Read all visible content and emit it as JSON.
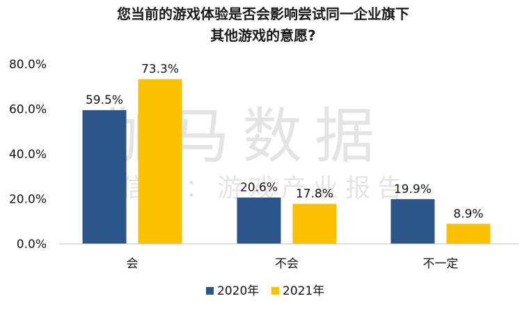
{
  "chart_data": {
    "type": "bar",
    "title_lines": [
      "您当前的游戏体验是否会影响尝试同一企业旗下",
      "其他游戏的意愿?"
    ],
    "categories": [
      "会",
      "不会",
      "不一定"
    ],
    "series": [
      {
        "name": "2020年",
        "values": [
          59.5,
          20.6,
          19.9
        ],
        "color": "#2b5589"
      },
      {
        "name": "2021年",
        "values": [
          73.3,
          17.8,
          8.9
        ],
        "color": "#fbc100"
      }
    ],
    "ylim": [
      0,
      80
    ],
    "yticks": [
      "0.0%",
      "20.0%",
      "40.0%",
      "60.0%",
      "80.0%"
    ],
    "data_labels": [
      [
        "59.5%",
        "20.6%",
        "19.9%"
      ],
      [
        "73.3%",
        "17.8%",
        "8.9%"
      ]
    ],
    "grid": false,
    "legend_position": "bottom"
  },
  "watermark": {
    "main": "伽马数据",
    "sub": "微信号：游戏产业报告"
  }
}
